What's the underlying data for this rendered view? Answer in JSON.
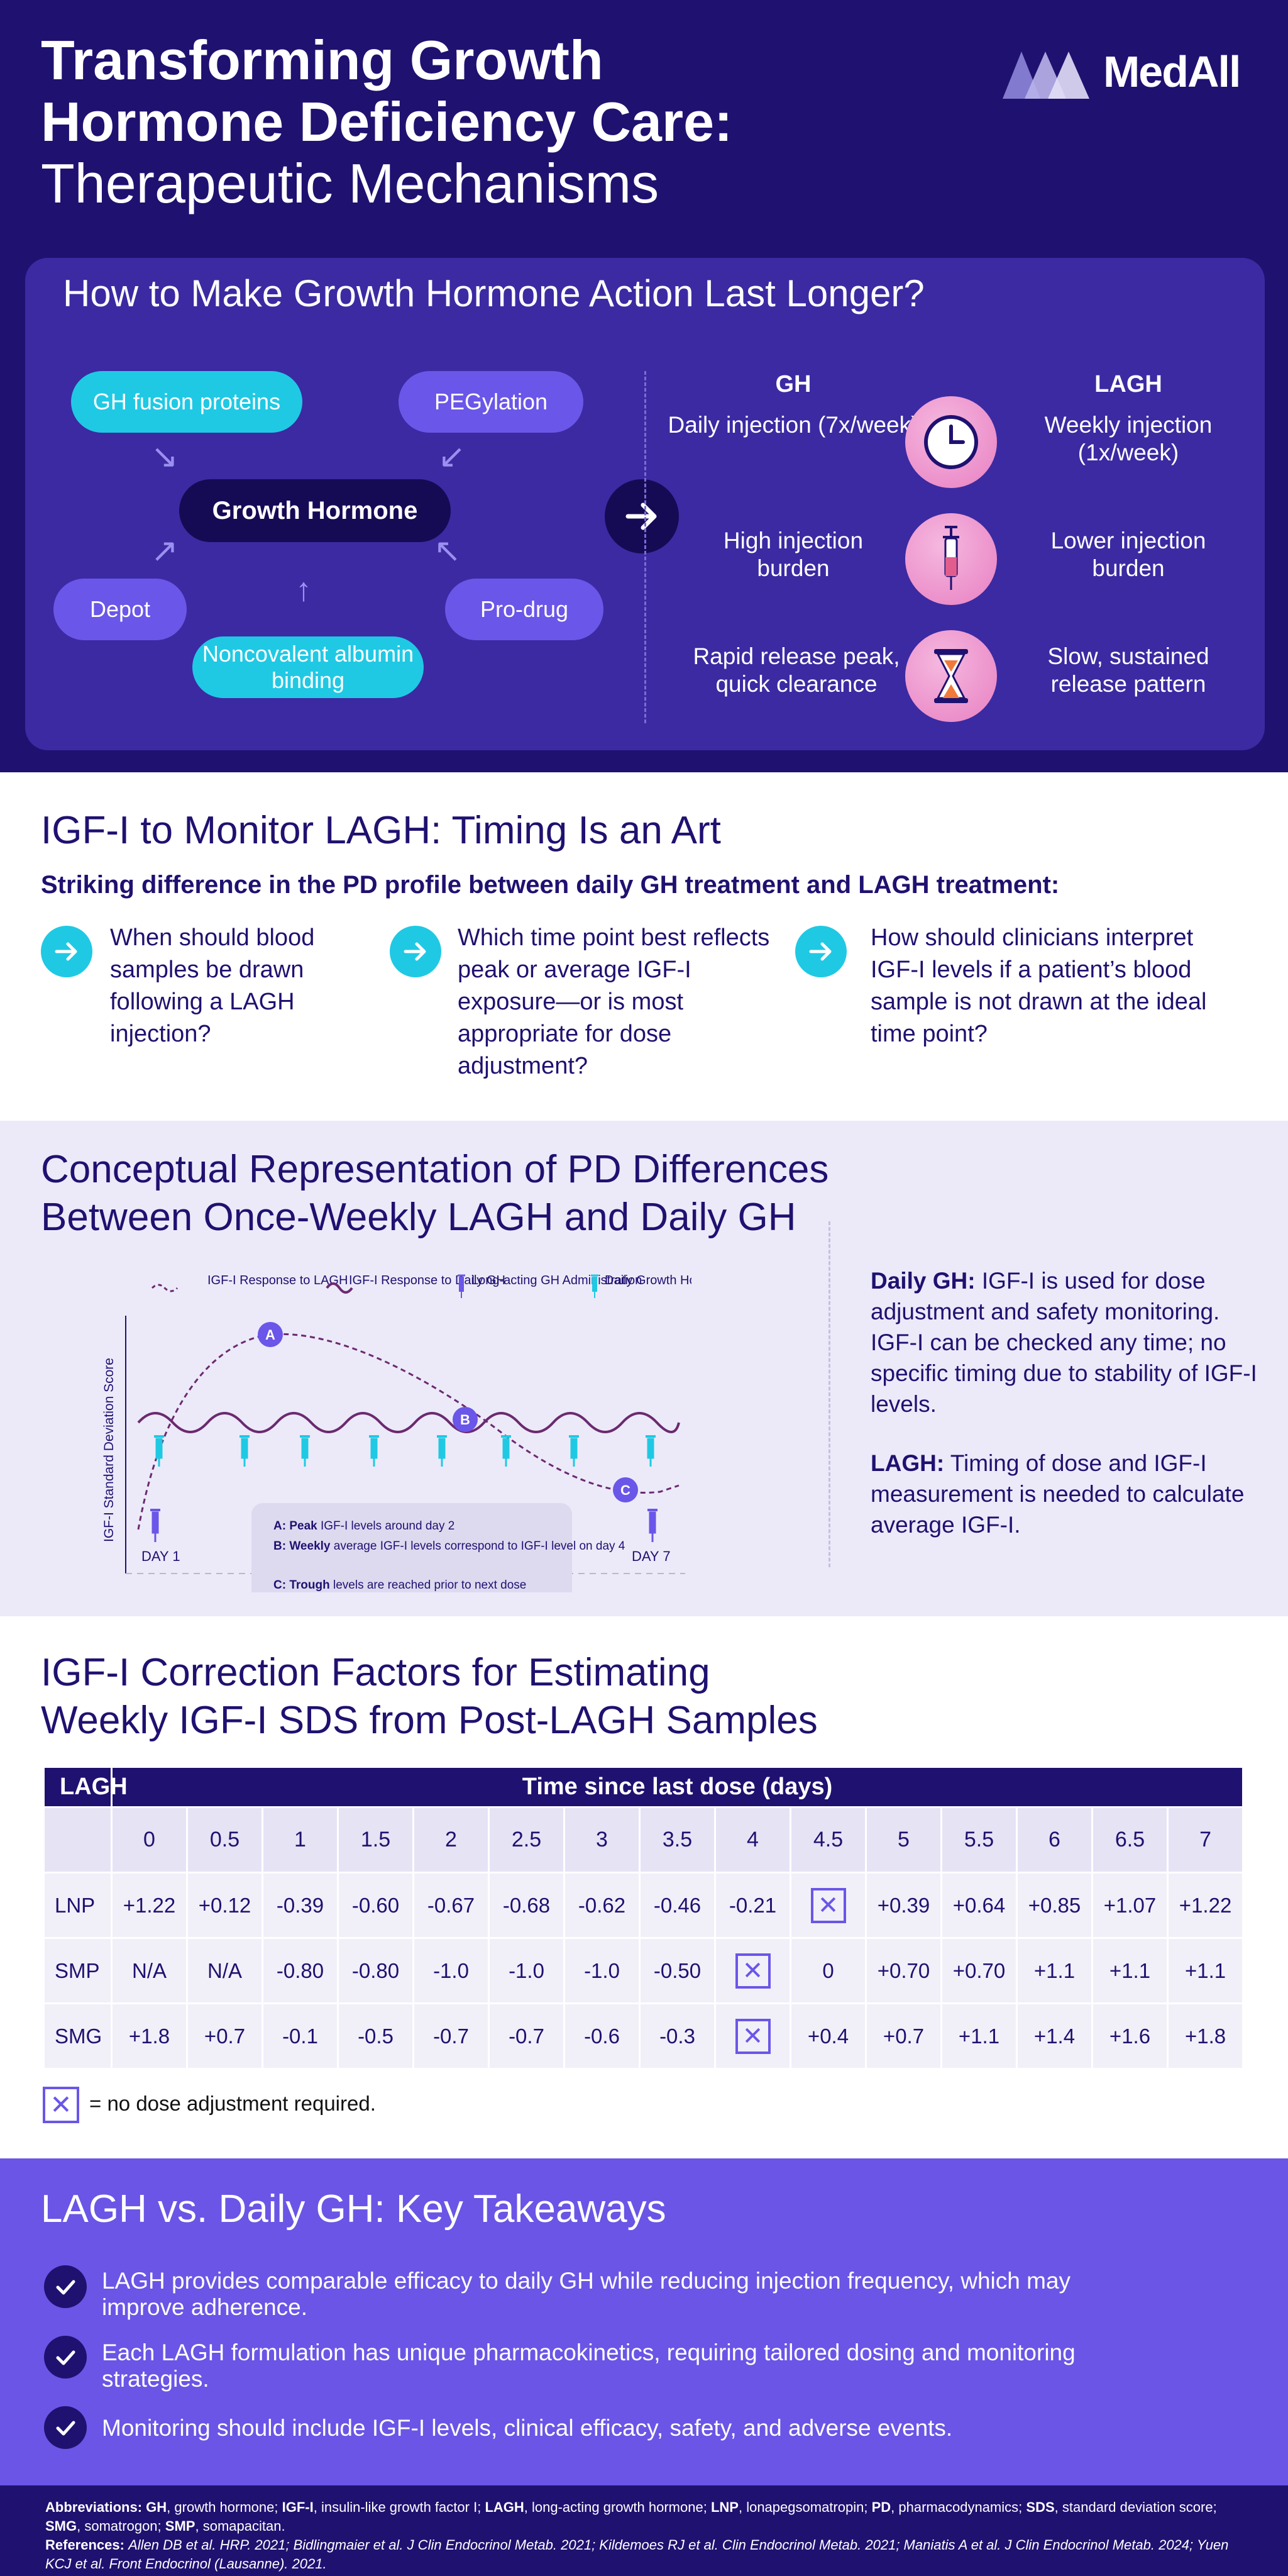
{
  "header": {
    "title_line1": "Transforming Growth",
    "title_line2": "Hormone Deficiency Care:",
    "title_line3": "Therapeutic Mechanisms",
    "logo_text": "MedAll"
  },
  "mechanisms": {
    "title": "How to Make Growth Hormone Action Last Longer?",
    "center": "Growth Hormone",
    "approaches": {
      "fusion": "GH fusion proteins",
      "peg": "PEGylation",
      "depot": "Depot",
      "prodrug": "Pro-drug",
      "albumin": "Noncovalent albumin binding"
    },
    "compare": {
      "gh_header": "GH",
      "lagh_header": "LAGH",
      "rows": [
        {
          "gh": "Daily injection (7x/week)",
          "icon": "clock-icon",
          "lagh": "Weekly injection (1x/week)"
        },
        {
          "gh": "High injection burden",
          "icon": "syringe-icon",
          "lagh": "Lower injection burden"
        },
        {
          "gh": "Rapid release peak, quick clearance",
          "icon": "hourglass-icon",
          "lagh": "Slow, sustained release pattern"
        }
      ]
    }
  },
  "monitor": {
    "title": "IGF-I to Monitor LAGH: Timing Is an Art",
    "subtitle": "Striking difference in the PD profile between daily GH treatment and LAGH treatment:",
    "questions": [
      "When should blood samples be drawn following a LAGH injection?",
      "Which time point best reflects peak or average IGF-I exposure—or is most appropriate for dose adjustment?",
      "How should clinicians interpret IGF-I levels if a patient’s blood sample is not drawn at the ideal time point?"
    ]
  },
  "pd": {
    "title_line1": "Conceptual Representation of PD Differences",
    "title_line2": "Between Once-Weekly LAGH and Daily GH",
    "legend": {
      "lagh_response": "IGF-I Response to LAGH",
      "daily_response": "IGF-I Response to Daily GH",
      "lagh_admin": "Long-acting GH Administration",
      "daily_dose": "Daily Growth Hormone Dose"
    },
    "ylabel": "IGF-I Standard Deviation Score",
    "day_start": "DAY 1",
    "day_end": "DAY 7",
    "markers": [
      "A",
      "B",
      "C"
    ],
    "notes": [
      {
        "key": "A:",
        "bold": "Peak",
        "rest": " IGF-I levels around day 2"
      },
      {
        "key": "B:",
        "bold": "Weekly",
        "rest": " average IGF-I levels correspond to IGF-I level on day 4"
      },
      {
        "key": "C:",
        "bold": "Trough",
        "rest": " levels are reached prior to next dose"
      }
    ],
    "daily_label": "Daily GH:",
    "daily_text": " IGF-I is used for dose adjustment and safety monitoring. IGF-I can be checked any time; no specific timing due to stability of IGF-I levels.",
    "lagh_label": "LAGH:",
    "lagh_text": " Timing of dose and IGF-I measurement is needed to calculate average IGF-I."
  },
  "chart_data": {
    "type": "line",
    "ylabel": "IGF-I Standard Deviation Score",
    "x_range": [
      "DAY 1",
      "DAY 7"
    ],
    "series": [
      {
        "name": "IGF-I Response to LAGH",
        "style": "dashed",
        "shape": "rise to peak at A, decline through B, trough at C"
      },
      {
        "name": "IGF-I Response to Daily GH",
        "style": "wavy",
        "shape": "stable oscillation"
      }
    ],
    "annotations": [
      "A",
      "B",
      "C"
    ]
  },
  "correction": {
    "title_line1": "IGF-I Correction Factors for Estimating",
    "title_line2": "Weekly IGF-I SDS from Post-LAGH Samples",
    "corner": "LAGH",
    "time_header": "Time since last dose (days)",
    "days": [
      "0",
      "0.5",
      "1",
      "1.5",
      "2",
      "2.5",
      "3",
      "3.5",
      "4",
      "4.5",
      "5",
      "5.5",
      "6",
      "6.5",
      "7"
    ],
    "rows": [
      {
        "label": "LNP",
        "values": [
          "+1.22",
          "+0.12",
          "-0.39",
          "-0.60",
          "-0.67",
          "-0.68",
          "-0.62",
          "-0.46",
          "-0.21",
          "X",
          "+0.39",
          "+0.64",
          "+0.85",
          "+1.07",
          "+1.22"
        ]
      },
      {
        "label": "SMP",
        "values": [
          "N/A",
          "N/A",
          "-0.80",
          "-0.80",
          "-1.0",
          "-1.0",
          "-1.0",
          "-0.50",
          "X",
          "0",
          "+0.70",
          "+0.70",
          "+1.1",
          "+1.1",
          "+1.1"
        ]
      },
      {
        "label": "SMG",
        "values": [
          "+1.8",
          "+0.7",
          "-0.1",
          "-0.5",
          "-0.7",
          "-0.7",
          "-0.6",
          "-0.3",
          "X",
          "+0.4",
          "+0.7",
          "+1.1",
          "+1.4",
          "+1.6",
          "+1.8"
        ]
      }
    ],
    "x_mark": "✕",
    "legend_text": "= no dose adjustment required."
  },
  "takeaways": {
    "title": "LAGH vs. Daily GH: Key Takeaways",
    "items": [
      "LAGH provides comparable efficacy to daily GH while reducing injection frequency, which may improve adherence.",
      "Each LAGH formulation has unique pharmacokinetics, requiring tailored dosing and monitoring strategies.",
      "Monitoring should include IGF-I levels, clinical efficacy, safety, and adverse events."
    ]
  },
  "footer": {
    "abbr_label": "Abbreviations:",
    "abbreviations": [
      {
        "term": "GH",
        "def": "growth hormone"
      },
      {
        "term": "IGF-I",
        "def": "insulin-like growth factor I"
      },
      {
        "term": "LAGH",
        "def": "long-acting growth hormone"
      },
      {
        "term": "LNP",
        "def": "lonapegsomatropin"
      },
      {
        "term": "PD",
        "def": "pharmacodynamics"
      },
      {
        "term": "SDS",
        "def": "standard deviation score"
      },
      {
        "term": "SMG",
        "def": "somatrogon"
      },
      {
        "term": "SMP",
        "def": "somapacitan"
      }
    ],
    "refs_label": "References:",
    "references": "Allen DB et al. HRP. 2021; Bidlingmaier et al. J Clin Endocrinol Metab. 2021; Kildemoes RJ et al. Clin Endocrinol Metab. 2021; Maniatis A et al. J Clin Endocrinol Metab. 2024; Yuen KCJ et al. Front Endocrinol (Lausanne). 2021."
  },
  "colors": {
    "navy": "#1f1170",
    "purple_box": "#3b2aa2",
    "accent_purple": "#6a56e8",
    "cyan": "#1fc9e4",
    "pink": "#e87fc2"
  }
}
